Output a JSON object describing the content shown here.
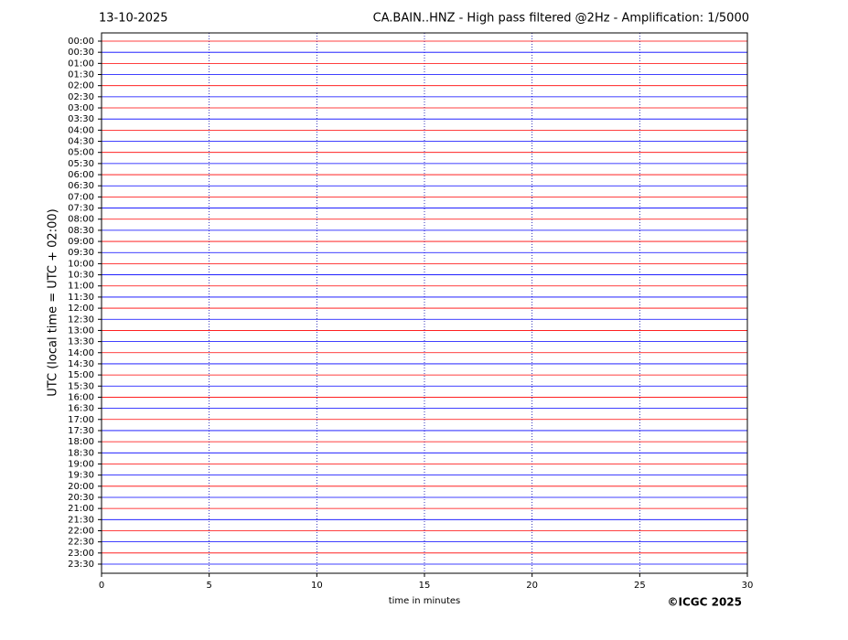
{
  "chart_data": {
    "type": "helicorder",
    "date": "13-10-2025",
    "title": "CA.BAIN..HNZ - High pass filtered @2Hz - Amplification: 1/5000",
    "xlabel": "time in minutes",
    "ylabel": "UTC (local time = UTC + 02:00)",
    "copyright": "©ICGC 2025",
    "categories": [
      "00:00",
      "00:30",
      "01:00",
      "01:30",
      "02:00",
      "02:30",
      "03:00",
      "03:30",
      "04:00",
      "04:30",
      "05:00",
      "05:30",
      "06:00",
      "06:30",
      "07:00",
      "07:30",
      "08:00",
      "08:30",
      "09:00",
      "09:30",
      "10:00",
      "10:30",
      "11:00",
      "11:30",
      "12:00",
      "12:30",
      "13:00",
      "13:30",
      "14:00",
      "14:30",
      "15:00",
      "15:30",
      "16:00",
      "16:30",
      "17:00",
      "17:30",
      "18:00",
      "18:30",
      "19:00",
      "19:30",
      "20:00",
      "20:30",
      "21:00",
      "21:30",
      "22:00",
      "22:30",
      "23:00",
      "23:30"
    ],
    "trace_colors": [
      "#ff0000",
      "#0000ff"
    ],
    "xlim": [
      0,
      30
    ],
    "xticks": [
      0,
      5,
      10,
      15,
      20,
      25,
      30
    ],
    "grid": true
  }
}
